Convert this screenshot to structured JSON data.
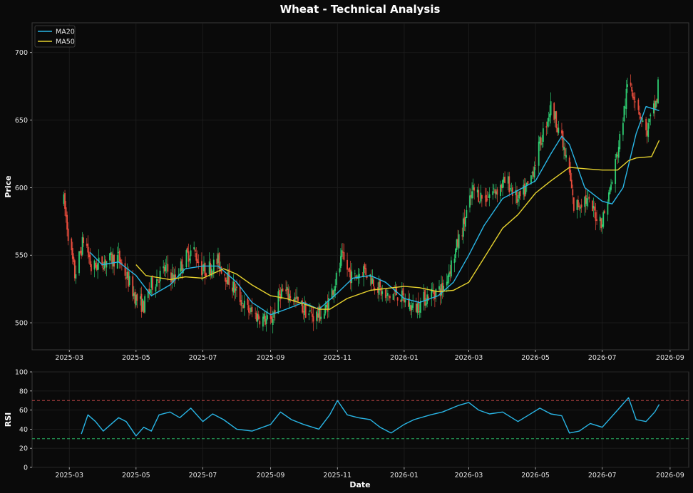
{
  "chart_data": [
    {
      "type": "candlestick",
      "title": "Wheat - Technical Analysis",
      "ylabel": "Price",
      "xlim": [
        "2025-01-26",
        "2026-09-18"
      ],
      "ylim": [
        480,
        722
      ],
      "x_ticks": [
        "2025-03",
        "2025-05",
        "2025-07",
        "2025-09",
        "2025-11",
        "2026-01",
        "2026-03",
        "2026-05",
        "2026-07",
        "2026-09"
      ],
      "y_ticks": [
        500,
        550,
        600,
        650,
        700
      ],
      "grid": true,
      "legend_position": "top-left",
      "price_path": [
        [
          "2025-02-24",
          590
        ],
        [
          "2025-03-01",
          560
        ],
        [
          "2025-03-06",
          535
        ],
        [
          "2025-03-15",
          565
        ],
        [
          "2025-03-21",
          540
        ],
        [
          "2025-03-31",
          545
        ],
        [
          "2025-04-15",
          548
        ],
        [
          "2025-05-01",
          518
        ],
        [
          "2025-05-08",
          512
        ],
        [
          "2025-05-15",
          528
        ],
        [
          "2025-05-28",
          540
        ],
        [
          "2025-06-05",
          532
        ],
        [
          "2025-06-15",
          548
        ],
        [
          "2025-06-22",
          555
        ],
        [
          "2025-07-01",
          538
        ],
        [
          "2025-07-15",
          545
        ],
        [
          "2025-08-01",
          522
        ],
        [
          "2025-08-10",
          510
        ],
        [
          "2025-08-20",
          505
        ],
        [
          "2025-09-01",
          500
        ],
        [
          "2025-09-10",
          523
        ],
        [
          "2025-09-20",
          520
        ],
        [
          "2025-10-01",
          510
        ],
        [
          "2025-10-10",
          505
        ],
        [
          "2025-10-20",
          507
        ],
        [
          "2025-11-01",
          535
        ],
        [
          "2025-11-05",
          548
        ],
        [
          "2025-11-15",
          532
        ],
        [
          "2025-11-25",
          540
        ],
        [
          "2025-12-05",
          530
        ],
        [
          "2025-12-15",
          518
        ],
        [
          "2025-12-25",
          522
        ],
        [
          "2026-01-10",
          510
        ],
        [
          "2026-01-25",
          522
        ],
        [
          "2026-02-05",
          525
        ],
        [
          "2026-02-15",
          548
        ],
        [
          "2026-02-25",
          575
        ],
        [
          "2026-03-05",
          598
        ],
        [
          "2026-03-15",
          592
        ],
        [
          "2026-03-25",
          598
        ],
        [
          "2026-04-05",
          605
        ],
        [
          "2026-04-15",
          590
        ],
        [
          "2026-04-25",
          602
        ],
        [
          "2026-05-05",
          632
        ],
        [
          "2026-05-15",
          660
        ],
        [
          "2026-05-22",
          645
        ],
        [
          "2026-06-01",
          610
        ],
        [
          "2026-06-05",
          585
        ],
        [
          "2026-06-15",
          592
        ],
        [
          "2026-06-25",
          580
        ],
        [
          "2026-07-01",
          575
        ],
        [
          "2026-07-10",
          605
        ],
        [
          "2026-07-18",
          640
        ],
        [
          "2026-07-25",
          680
        ],
        [
          "2026-08-01",
          665
        ],
        [
          "2026-08-10",
          640
        ],
        [
          "2026-08-20",
          665
        ],
        [
          "2026-08-22",
          690
        ]
      ],
      "series": [
        {
          "name": "MA20",
          "color": "#29b6e6",
          "points": [
            [
              "2025-03-20",
              552
            ],
            [
              "2025-03-31",
              543
            ],
            [
              "2025-04-15",
              545
            ],
            [
              "2025-05-01",
              535
            ],
            [
              "2025-05-15",
              520
            ],
            [
              "2025-06-01",
              528
            ],
            [
              "2025-06-15",
              540
            ],
            [
              "2025-07-01",
              542
            ],
            [
              "2025-07-15",
              542
            ],
            [
              "2025-08-01",
              530
            ],
            [
              "2025-08-15",
              515
            ],
            [
              "2025-09-01",
              506
            ],
            [
              "2025-09-15",
              510
            ],
            [
              "2025-10-01",
              515
            ],
            [
              "2025-10-15",
              510
            ],
            [
              "2025-11-01",
              522
            ],
            [
              "2025-11-15",
              533
            ],
            [
              "2025-12-01",
              535
            ],
            [
              "2025-12-15",
              530
            ],
            [
              "2026-01-01",
              518
            ],
            [
              "2026-01-15",
              515
            ],
            [
              "2026-02-01",
              520
            ],
            [
              "2026-02-15",
              530
            ],
            [
              "2026-03-01",
              550
            ],
            [
              "2026-03-15",
              572
            ],
            [
              "2026-04-01",
              592
            ],
            [
              "2026-04-15",
              598
            ],
            [
              "2026-05-01",
              605
            ],
            [
              "2026-05-15",
              625
            ],
            [
              "2026-05-25",
              638
            ],
            [
              "2026-06-01",
              632
            ],
            [
              "2026-06-15",
              600
            ],
            [
              "2026-07-01",
              590
            ],
            [
              "2026-07-10",
              588
            ],
            [
              "2026-07-20",
              600
            ],
            [
              "2026-08-01",
              640
            ],
            [
              "2026-08-10",
              660
            ],
            [
              "2026-08-22",
              657
            ]
          ]
        },
        {
          "name": "MA50",
          "color": "#e6d22e",
          "points": [
            [
              "2025-05-01",
              543
            ],
            [
              "2025-05-10",
              535
            ],
            [
              "2025-06-01",
              532
            ],
            [
              "2025-06-15",
              534
            ],
            [
              "2025-07-01",
              533
            ],
            [
              "2025-07-20",
              540
            ],
            [
              "2025-08-01",
              536
            ],
            [
              "2025-08-15",
              528
            ],
            [
              "2025-09-01",
              520
            ],
            [
              "2025-09-15",
              518
            ],
            [
              "2025-10-01",
              514
            ],
            [
              "2025-10-15",
              510
            ],
            [
              "2025-10-25",
              510
            ],
            [
              "2025-11-10",
              518
            ],
            [
              "2025-12-01",
              524
            ],
            [
              "2026-01-01",
              527
            ],
            [
              "2026-01-15",
              526
            ],
            [
              "2026-02-01",
              523
            ],
            [
              "2026-02-15",
              524
            ],
            [
              "2026-03-01",
              530
            ],
            [
              "2026-03-15",
              548
            ],
            [
              "2026-04-01",
              570
            ],
            [
              "2026-04-15",
              580
            ],
            [
              "2026-05-01",
              596
            ],
            [
              "2026-05-15",
              605
            ],
            [
              "2026-06-01",
              615
            ],
            [
              "2026-06-15",
              614
            ],
            [
              "2026-07-01",
              613
            ],
            [
              "2026-07-15",
              613
            ],
            [
              "2026-07-25",
              620
            ],
            [
              "2026-08-01",
              622
            ],
            [
              "2026-08-15",
              623
            ],
            [
              "2026-08-22",
              635
            ]
          ]
        }
      ]
    },
    {
      "type": "line",
      "xlabel": "Date",
      "ylabel": "RSI",
      "xlim": [
        "2025-01-26",
        "2026-09-18"
      ],
      "ylim": [
        0,
        100
      ],
      "x_ticks": [
        "2025-03",
        "2025-05",
        "2025-07",
        "2025-09",
        "2025-11",
        "2026-01",
        "2026-03",
        "2026-05",
        "2026-07",
        "2026-09"
      ],
      "y_ticks": [
        0,
        20,
        40,
        60,
        80,
        100
      ],
      "grid": true,
      "reference_lines": [
        {
          "value": 70,
          "color": "#e05050"
        },
        {
          "value": 30,
          "color": "#2ecc71"
        }
      ],
      "series": [
        {
          "name": "RSI",
          "color": "#29b6e6",
          "points": [
            [
              "2025-03-12",
              35
            ],
            [
              "2025-03-18",
              55
            ],
            [
              "2025-03-25",
              48
            ],
            [
              "2025-04-01",
              38
            ],
            [
              "2025-04-08",
              45
            ],
            [
              "2025-04-15",
              52
            ],
            [
              "2025-04-22",
              48
            ],
            [
              "2025-05-01",
              33
            ],
            [
              "2025-05-08",
              42
            ],
            [
              "2025-05-15",
              38
            ],
            [
              "2025-05-22",
              55
            ],
            [
              "2025-06-01",
              58
            ],
            [
              "2025-06-10",
              52
            ],
            [
              "2025-06-20",
              62
            ],
            [
              "2025-07-01",
              48
            ],
            [
              "2025-07-10",
              56
            ],
            [
              "2025-07-20",
              50
            ],
            [
              "2025-08-01",
              40
            ],
            [
              "2025-08-15",
              38
            ],
            [
              "2025-09-01",
              45
            ],
            [
              "2025-09-10",
              58
            ],
            [
              "2025-09-20",
              50
            ],
            [
              "2025-10-01",
              45
            ],
            [
              "2025-10-15",
              40
            ],
            [
              "2025-10-25",
              55
            ],
            [
              "2025-11-01",
              70
            ],
            [
              "2025-11-10",
              55
            ],
            [
              "2025-11-20",
              52
            ],
            [
              "2025-12-01",
              50
            ],
            [
              "2025-12-10",
              42
            ],
            [
              "2025-12-20",
              36
            ],
            [
              "2026-01-01",
              45
            ],
            [
              "2026-01-10",
              50
            ],
            [
              "2026-01-25",
              55
            ],
            [
              "2026-02-05",
              58
            ],
            [
              "2026-02-20",
              65
            ],
            [
              "2026-03-01",
              68
            ],
            [
              "2026-03-10",
              60
            ],
            [
              "2026-03-20",
              56
            ],
            [
              "2026-04-01",
              58
            ],
            [
              "2026-04-15",
              48
            ],
            [
              "2026-04-25",
              55
            ],
            [
              "2026-05-05",
              62
            ],
            [
              "2026-05-15",
              56
            ],
            [
              "2026-05-25",
              54
            ],
            [
              "2026-06-01",
              36
            ],
            [
              "2026-06-10",
              38
            ],
            [
              "2026-06-20",
              46
            ],
            [
              "2026-07-01",
              42
            ],
            [
              "2026-07-15",
              60
            ],
            [
              "2026-07-25",
              73
            ],
            [
              "2026-08-01",
              50
            ],
            [
              "2026-08-10",
              48
            ],
            [
              "2026-08-18",
              58
            ],
            [
              "2026-08-22",
              66
            ]
          ]
        }
      ]
    }
  ],
  "colors": {
    "background": "#0a0a0a",
    "panel_border": "#3a3a3a",
    "grid": "#1f1f1f",
    "candle_up": "#2ecc71",
    "candle_down": "#e74c3c"
  }
}
